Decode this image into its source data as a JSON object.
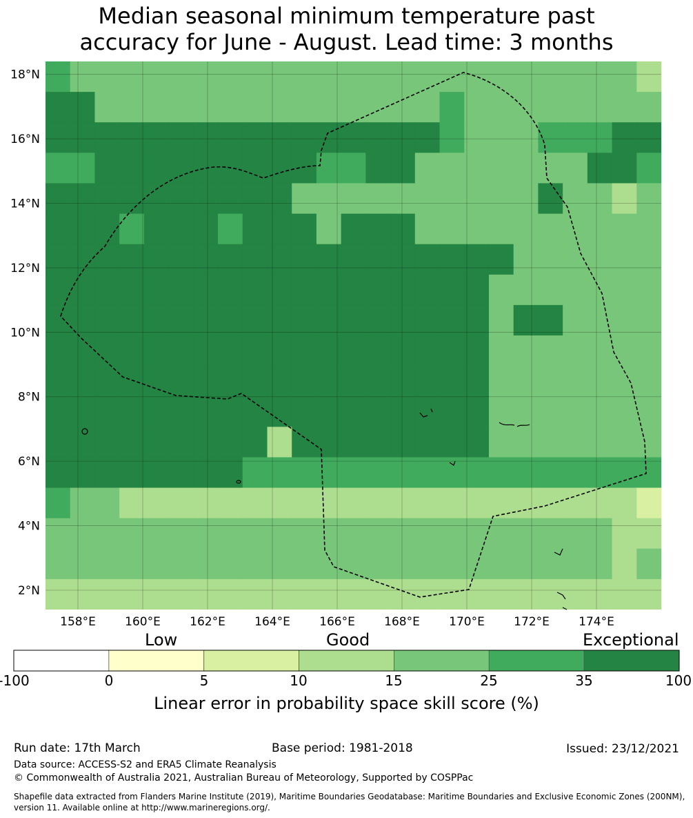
{
  "title": {
    "line1": "Median seasonal minimum temperature past",
    "line2": "accuracy for June - August. Lead time: 3 months"
  },
  "map": {
    "lat_labels": [
      "18°N",
      "16°N",
      "14°N",
      "12°N",
      "10°N",
      "8°N",
      "6°N",
      "4°N",
      "2°N"
    ],
    "lon_labels": [
      "158°E",
      "160°E",
      "162°E",
      "164°E",
      "166°E",
      "168°E",
      "170°E",
      "172°E",
      "174°E"
    ],
    "lat_range": [
      1.4,
      18.4
    ],
    "lon_range": [
      157.0,
      176.0
    ],
    "cell_size_deg": 0.84,
    "grid_levels": [
      "5444444444444444444444443",
      "6644444444444444544444444",
      "6666666666666666544455566",
      "5566666666655664444444665",
      "6666666666444444444464434",
      "6665666566646664444444444",
      "6666666666666666666444444",
      "6666666666666666664444444",
      "6666666666666666664664444",
      "6666666666666666664444444",
      "6666666666666666664444444",
      "6666666666666666664444444",
      "6666666663666666664444444",
      "6666666655555555555555555",
      "5443333333333333333333332",
      "4444444444444444444444433",
      "4444444444444444444444434",
      "3333333333333333333333333"
    ],
    "colors": {
      "neg": "#ffffff",
      "0-5": "#ffffcc",
      "5-10": "#d9f0a3",
      "10-15": "#addd8e",
      "15-25": "#78c679",
      "25-35": "#41ab5d",
      "35-100": "#238443"
    },
    "boundary_color": "#000000"
  },
  "colorbar": {
    "category_labels": [
      "Low",
      "Good",
      "Exceptional"
    ],
    "ticks": [
      "-100",
      "0",
      "5",
      "10",
      "15",
      "25",
      "35",
      "100"
    ],
    "colors": [
      "#ffffff",
      "#ffffcc",
      "#d9f0a3",
      "#addd8e",
      "#78c679",
      "#41ab5d",
      "#238443"
    ],
    "title": "Linear error in probability space skill score (%)"
  },
  "footer": {
    "run_date": "Run date: 17th March",
    "base_period": "Base period: 1981-2018",
    "issued": "Issued: 23/12/2021",
    "data_source": "Data source: ACCESS-S2 and ERA5 Climate Reanalysis",
    "copyright": "© Commonwealth of Australia 2021, Australian Bureau of Meteorology, Supported by COSPPac",
    "shapefile": "Shapefile data extracted from Flanders Marine Institute (2019), Maritime Boundaries Geodatabase: Maritime Boundaries and Exclusive Economic Zones (200NM), version 11. Available online at http://www.marineregions.org/."
  }
}
